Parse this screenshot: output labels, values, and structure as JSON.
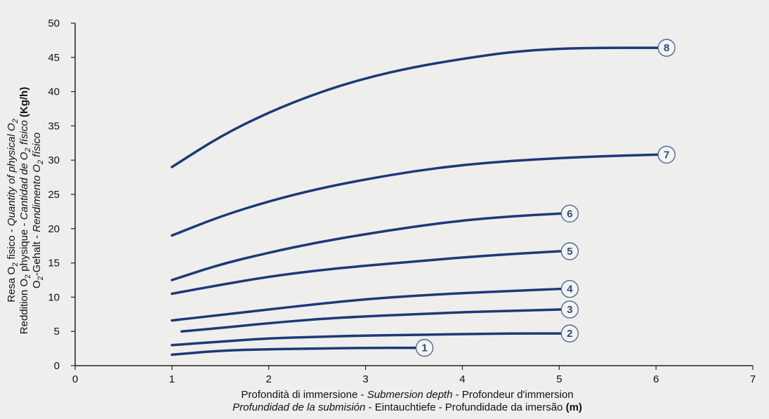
{
  "chart_data": {
    "type": "line",
    "xlabel_line1": {
      "it": "Profondità di immersione",
      "sep1": " - ",
      "en": "Submersion depth",
      "sep2": " - ",
      "fr": "Profondeur d'immersion"
    },
    "xlabel_line2": {
      "es": "Profundidad de la submisión",
      "sep1": " - ",
      "de": "Eintauchtiefe",
      "sep2": " - ",
      "pt": "Profundidade da imersão",
      "unit": " (m)"
    },
    "ylabel_line1": {
      "it_prefix": "Resa O",
      "it_sub": "2",
      "it_rest": " fisico - ",
      "en_prefix": "Quantity of physical O",
      "en_sub": "2"
    },
    "ylabel_line2": {
      "fr_prefix": "Reddition O",
      "fr_sub": "2",
      "fr_rest": " physique - ",
      "es_prefix": "Cantidad de O",
      "es_sub": "2",
      "es_rest": " físico ",
      "unit": "(Kg/h)"
    },
    "ylabel_line3": {
      "de_prefix": "O",
      "de_sub": "2",
      "de_rest": "-Gehalt - ",
      "pt_prefix": "Rendimento O",
      "pt_sub": "2",
      "pt_rest": " físico"
    },
    "x_ticks": [
      "0",
      "1",
      "2",
      "3",
      "4",
      "5",
      "6",
      "7"
    ],
    "y_ticks": [
      "0",
      "5",
      "10",
      "15",
      "20",
      "25",
      "30",
      "35",
      "40",
      "45",
      "50"
    ],
    "xlim": [
      0,
      7
    ],
    "ylim": [
      0,
      50
    ],
    "grid": false,
    "series_color": "#1c3a78",
    "label_color": "#2a4a80",
    "series": [
      {
        "name": "1",
        "points": [
          [
            1,
            1.6
          ],
          [
            1.5,
            2.2
          ],
          [
            2,
            2.4
          ],
          [
            2.5,
            2.5
          ],
          [
            3,
            2.6
          ],
          [
            3.5,
            2.6
          ]
        ]
      },
      {
        "name": "2",
        "points": [
          [
            1,
            3.0
          ],
          [
            1.5,
            3.5
          ],
          [
            2,
            4.0
          ],
          [
            2.5,
            4.2
          ],
          [
            3,
            4.4
          ],
          [
            3.5,
            4.5
          ],
          [
            4,
            4.6
          ],
          [
            4.5,
            4.7
          ],
          [
            5,
            4.7
          ]
        ]
      },
      {
        "name": "3",
        "points": [
          [
            1.1,
            5.0
          ],
          [
            1.5,
            5.5
          ],
          [
            2,
            6.2
          ],
          [
            2.5,
            6.8
          ],
          [
            3,
            7.2
          ],
          [
            3.5,
            7.5
          ],
          [
            4,
            7.8
          ],
          [
            4.5,
            8.0
          ],
          [
            5,
            8.2
          ]
        ]
      },
      {
        "name": "4",
        "points": [
          [
            1,
            6.6
          ],
          [
            1.5,
            7.4
          ],
          [
            2,
            8.2
          ],
          [
            2.5,
            9.0
          ],
          [
            3,
            9.7
          ],
          [
            3.5,
            10.2
          ],
          [
            4,
            10.6
          ],
          [
            4.5,
            10.9
          ],
          [
            5,
            11.2
          ]
        ]
      },
      {
        "name": "5",
        "points": [
          [
            1,
            10.5
          ],
          [
            1.5,
            11.8
          ],
          [
            2,
            13.0
          ],
          [
            2.5,
            13.9
          ],
          [
            3,
            14.6
          ],
          [
            3.5,
            15.2
          ],
          [
            4,
            15.8
          ],
          [
            4.5,
            16.3
          ],
          [
            5,
            16.7
          ]
        ]
      },
      {
        "name": "6",
        "points": [
          [
            1,
            12.5
          ],
          [
            1.5,
            14.8
          ],
          [
            2,
            16.5
          ],
          [
            2.5,
            18.0
          ],
          [
            3,
            19.2
          ],
          [
            3.5,
            20.3
          ],
          [
            4,
            21.2
          ],
          [
            4.5,
            21.8
          ],
          [
            5,
            22.2
          ]
        ]
      },
      {
        "name": "7",
        "points": [
          [
            1,
            19.0
          ],
          [
            1.5,
            21.8
          ],
          [
            2,
            24.0
          ],
          [
            2.5,
            25.8
          ],
          [
            3,
            27.2
          ],
          [
            3.5,
            28.4
          ],
          [
            4,
            29.3
          ],
          [
            4.5,
            29.9
          ],
          [
            5,
            30.3
          ],
          [
            5.5,
            30.6
          ],
          [
            6,
            30.8
          ]
        ]
      },
      {
        "name": "8",
        "points": [
          [
            1,
            29.0
          ],
          [
            1.5,
            33.5
          ],
          [
            2,
            37.0
          ],
          [
            2.5,
            39.8
          ],
          [
            3,
            42.0
          ],
          [
            3.5,
            43.6
          ],
          [
            4,
            44.8
          ],
          [
            4.5,
            45.8
          ],
          [
            5,
            46.3
          ],
          [
            5.5,
            46.4
          ],
          [
            6,
            46.4
          ]
        ]
      }
    ]
  }
}
